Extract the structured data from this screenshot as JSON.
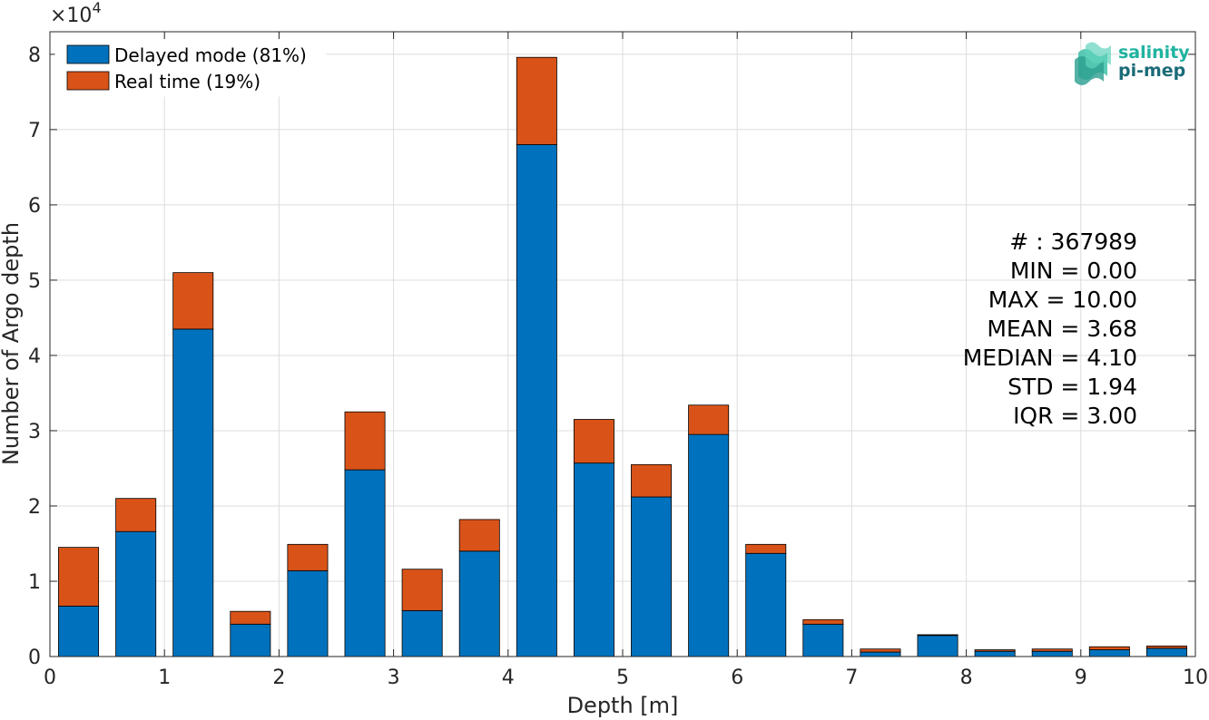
{
  "chart_data": {
    "type": "bar",
    "stacked": true,
    "xlabel": "Depth [m]",
    "ylabel": "Number of Argo depth",
    "y_exponent_label": "×10",
    "y_exponent_power": "4",
    "xlim": [
      0,
      10
    ],
    "ylim": [
      0,
      8.3
    ],
    "y_scale_factor": 10000,
    "grid": true,
    "legend_position": "top-left",
    "bin_width": 0.5,
    "x": [
      0.25,
      0.75,
      1.25,
      1.75,
      2.25,
      2.75,
      3.25,
      3.75,
      4.25,
      4.75,
      5.25,
      5.75,
      6.25,
      6.75,
      7.25,
      7.75,
      8.25,
      8.75,
      9.25,
      9.75
    ],
    "series": [
      {
        "name": "Delayed mode (81%)",
        "color": "#0072BD",
        "values": [
          0.67,
          1.66,
          4.35,
          0.43,
          1.14,
          2.48,
          0.61,
          1.4,
          6.8,
          2.57,
          2.12,
          2.95,
          1.37,
          0.43,
          0.06,
          0.28,
          0.07,
          0.07,
          0.09,
          0.11
        ]
      },
      {
        "name": "Real time (19%)",
        "color": "#D95319",
        "values": [
          0.78,
          0.44,
          0.75,
          0.17,
          0.35,
          0.77,
          0.55,
          0.42,
          1.16,
          0.58,
          0.43,
          0.39,
          0.12,
          0.06,
          0.04,
          0.01,
          0.02,
          0.03,
          0.04,
          0.03
        ]
      }
    ],
    "xticks": [
      "0",
      "1",
      "2",
      "3",
      "4",
      "5",
      "6",
      "7",
      "8",
      "9",
      "10"
    ],
    "yticks": [
      "0",
      "1",
      "2",
      "3",
      "4",
      "5",
      "6",
      "7",
      "8"
    ]
  },
  "stats": [
    "# : 367989",
    "MIN = 0.00",
    "MAX =  10.00",
    "MEAN = 3.68",
    "MEDIAN = 4.10",
    "STD = 1.94",
    "IQR = 3.00"
  ],
  "logo": {
    "line1": "salinity",
    "line2": "pi-mep",
    "color1": "#1fb3a0",
    "color2": "#1a6b78"
  }
}
